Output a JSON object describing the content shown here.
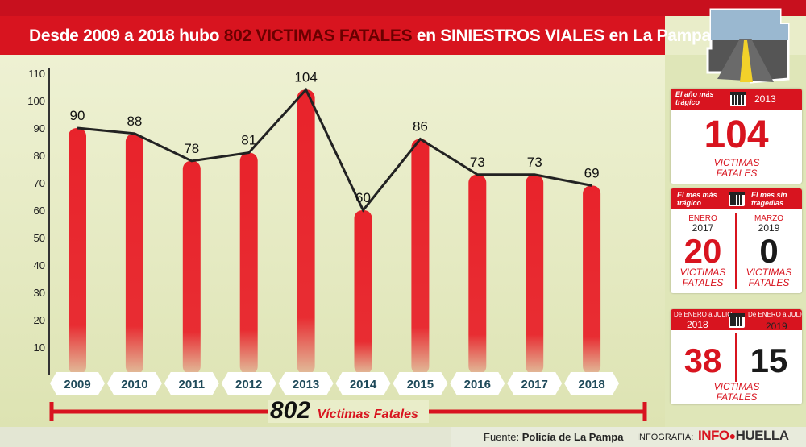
{
  "header": {
    "part1": "Desde 2009 a 2018  hubo ",
    "highlight": "802 VICTIMAS FATALES",
    "part2": " en SINIESTROS VIALES en La Pampa"
  },
  "chart_data": {
    "type": "bar",
    "categories": [
      "2009",
      "2010",
      "2011",
      "2012",
      "2013",
      "2014",
      "2015",
      "2016",
      "2017",
      "2018"
    ],
    "values": [
      90,
      88,
      78,
      81,
      104,
      60,
      86,
      73,
      73,
      69
    ],
    "line_overlay": true,
    "title": "Desde 2009 a 2018 hubo 802 VICTIMAS FATALES en SINIESTROS VIALES en La Pampa",
    "yticks": [
      10,
      20,
      30,
      40,
      50,
      60,
      70,
      80,
      90,
      100,
      110
    ],
    "ylim": [
      0,
      110
    ],
    "grid": false,
    "bar_color": "#e8232b",
    "line_color": "#222222"
  },
  "total": {
    "number": "802",
    "label": "Víctimas Fatales"
  },
  "cards": {
    "tragic_year": {
      "label": "El año más trágico",
      "year": "2013",
      "value": "104",
      "unit": "VICTIMAS FATALES"
    },
    "month_tragic": {
      "label": "El mes más trágico",
      "month": "ENERO",
      "year": "2017",
      "value": "20",
      "unit": "VICTIMAS FATALES"
    },
    "month_none": {
      "label": "El mes sin tragedias",
      "month": "MARZO",
      "year": "2019",
      "value": "0",
      "unit": "VICTIMAS FATALES"
    },
    "jan_jul_2018": {
      "label": "De ENERO a JULIO",
      "year": "2018",
      "value": "38"
    },
    "jan_jul_2019": {
      "label": "De ENERO a JULIO",
      "year": "2019",
      "value": "15"
    },
    "jan_jul_unit": "VICTIMAS FATALES"
  },
  "footer": {
    "fuente_label": "Fuente: ",
    "fuente_value": "Policía de La Pampa",
    "infografia": "INFOGRAFIA:",
    "brand_a": "INFO",
    "brand_b": "HUELLA"
  },
  "colors": {
    "red": "#d8141f",
    "bar": "#e8232b",
    "bg": "#e9edc9"
  }
}
